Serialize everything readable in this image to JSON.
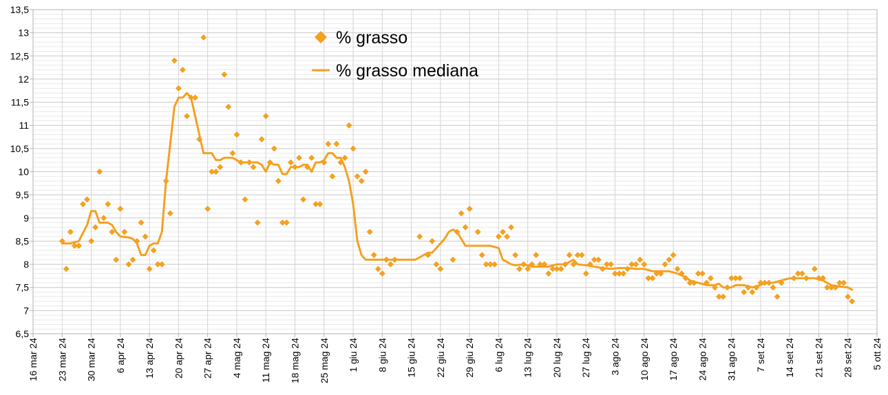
{
  "chart_data": {
    "type": "line",
    "title": "",
    "xlabel": "",
    "ylabel": "",
    "ylim": [
      6.5,
      13.5
    ],
    "yticks": [
      "6,5",
      "7",
      "7,5",
      "8",
      "8,5",
      "9",
      "9,5",
      "10",
      "10,5",
      "11",
      "11,5",
      "12",
      "12,5",
      "13",
      "13,5"
    ],
    "xticks": [
      "16 mar 24",
      "23 mar 24",
      "30 mar 24",
      "6 apr 24",
      "13 apr 24",
      "20 apr 24",
      "27 apr 24",
      "4 mag 24",
      "11 mag 24",
      "18 mag 24",
      "25 mag 24",
      "1 giu 24",
      "8 giu 24",
      "15 giu 24",
      "22 giu 24",
      "29 giu 24",
      "6 lug 24",
      "13 lug 24",
      "20 lug 24",
      "27 lug 24",
      "3 ago 24",
      "10 ago 24",
      "17 ago 24",
      "24 ago 24",
      "31 ago 24",
      "7 set 24",
      "14 set 24",
      "21 set 24",
      "28 set 24",
      "5 ott 24"
    ],
    "x_unit": "days since 16 mar 24",
    "grid": true,
    "legend_position": "top-center",
    "colors": {
      "series": "#f4a020",
      "grid": "#d9d9d9",
      "axis": "#b3b3b3"
    },
    "series": [
      {
        "name": "% grasso",
        "style": "markers",
        "marker": "diamond",
        "points": [
          [
            7,
            8.5
          ],
          [
            8,
            7.9
          ],
          [
            9,
            8.7
          ],
          [
            10,
            8.4
          ],
          [
            11,
            8.4
          ],
          [
            12,
            9.3
          ],
          [
            13,
            9.4
          ],
          [
            14,
            8.5
          ],
          [
            15,
            8.8
          ],
          [
            16,
            10.0
          ],
          [
            17,
            9.0
          ],
          [
            18,
            9.3
          ],
          [
            19,
            8.7
          ],
          [
            20,
            8.1
          ],
          [
            21,
            9.2
          ],
          [
            22,
            8.7
          ],
          [
            23,
            8.0
          ],
          [
            24,
            8.1
          ],
          [
            25,
            8.5
          ],
          [
            26,
            8.9
          ],
          [
            27,
            8.6
          ],
          [
            28,
            7.9
          ],
          [
            29,
            8.3
          ],
          [
            30,
            8.0
          ],
          [
            31,
            8.0
          ],
          [
            32,
            9.8
          ],
          [
            33,
            9.1
          ],
          [
            34,
            12.4
          ],
          [
            35,
            11.8
          ],
          [
            36,
            12.2
          ],
          [
            37,
            11.2
          ],
          [
            38,
            11.6
          ],
          [
            39,
            11.6
          ],
          [
            40,
            10.7
          ],
          [
            41,
            12.9
          ],
          [
            42,
            9.2
          ],
          [
            43,
            10.0
          ],
          [
            44,
            10.0
          ],
          [
            45,
            10.1
          ],
          [
            46,
            12.1
          ],
          [
            47,
            11.4
          ],
          [
            48,
            10.4
          ],
          [
            49,
            10.8
          ],
          [
            50,
            10.2
          ],
          [
            51,
            9.4
          ],
          [
            52,
            10.2
          ],
          [
            53,
            10.1
          ],
          [
            54,
            8.9
          ],
          [
            55,
            10.7
          ],
          [
            56,
            11.2
          ],
          [
            57,
            10.2
          ],
          [
            58,
            10.5
          ],
          [
            59,
            9.8
          ],
          [
            60,
            8.9
          ],
          [
            61,
            8.9
          ],
          [
            62,
            10.2
          ],
          [
            63,
            10.1
          ],
          [
            64,
            10.3
          ],
          [
            65,
            9.4
          ],
          [
            66,
            10.1
          ],
          [
            67,
            10.3
          ],
          [
            68,
            9.3
          ],
          [
            69,
            9.3
          ],
          [
            70,
            10.2
          ],
          [
            71,
            10.6
          ],
          [
            72,
            9.9
          ],
          [
            73,
            10.6
          ],
          [
            74,
            10.2
          ],
          [
            75,
            10.3
          ],
          [
            76,
            11.0
          ],
          [
            77,
            10.5
          ],
          [
            78,
            9.9
          ],
          [
            79,
            9.8
          ],
          [
            80,
            10.0
          ],
          [
            81,
            8.7
          ],
          [
            82,
            8.2
          ],
          [
            83,
            7.9
          ],
          [
            84,
            7.8
          ],
          [
            85,
            8.1
          ],
          [
            86,
            8.0
          ],
          [
            87,
            8.1
          ],
          [
            93,
            8.6
          ],
          [
            95,
            8.2
          ],
          [
            96,
            8.5
          ],
          [
            97,
            8.0
          ],
          [
            98,
            7.9
          ],
          [
            101,
            8.1
          ],
          [
            102,
            8.7
          ],
          [
            103,
            9.1
          ],
          [
            104,
            8.8
          ],
          [
            105,
            9.2
          ],
          [
            107,
            8.7
          ],
          [
            108,
            8.2
          ],
          [
            109,
            8.0
          ],
          [
            110,
            8.0
          ],
          [
            111,
            8.0
          ],
          [
            112,
            8.6
          ],
          [
            113,
            8.7
          ],
          [
            114,
            8.6
          ],
          [
            115,
            8.8
          ],
          [
            116,
            8.2
          ],
          [
            117,
            7.9
          ],
          [
            118,
            8.0
          ],
          [
            119,
            7.9
          ],
          [
            120,
            8.0
          ],
          [
            121,
            8.2
          ],
          [
            122,
            8.0
          ],
          [
            123,
            8.0
          ],
          [
            124,
            7.8
          ],
          [
            125,
            7.9
          ],
          [
            126,
            7.9
          ],
          [
            127,
            7.9
          ],
          [
            128,
            8.0
          ],
          [
            129,
            8.2
          ],
          [
            130,
            8.0
          ],
          [
            131,
            8.2
          ],
          [
            132,
            8.2
          ],
          [
            133,
            7.8
          ],
          [
            134,
            8.0
          ],
          [
            135,
            8.1
          ],
          [
            136,
            8.1
          ],
          [
            137,
            7.9
          ],
          [
            138,
            8.0
          ],
          [
            139,
            8.0
          ],
          [
            140,
            7.8
          ],
          [
            141,
            7.8
          ],
          [
            142,
            7.8
          ],
          [
            143,
            7.9
          ],
          [
            144,
            8.0
          ],
          [
            145,
            8.0
          ],
          [
            146,
            8.1
          ],
          [
            147,
            8.0
          ],
          [
            148,
            7.7
          ],
          [
            149,
            7.7
          ],
          [
            150,
            7.8
          ],
          [
            151,
            7.8
          ],
          [
            152,
            8.0
          ],
          [
            153,
            8.1
          ],
          [
            154,
            8.2
          ],
          [
            155,
            7.9
          ],
          [
            156,
            7.8
          ],
          [
            157,
            7.7
          ],
          [
            158,
            7.6
          ],
          [
            159,
            7.6
          ],
          [
            160,
            7.8
          ],
          [
            161,
            7.8
          ],
          [
            162,
            7.6
          ],
          [
            163,
            7.7
          ],
          [
            164,
            7.5
          ],
          [
            165,
            7.3
          ],
          [
            166,
            7.3
          ],
          [
            167,
            7.5
          ],
          [
            168,
            7.7
          ],
          [
            169,
            7.7
          ],
          [
            170,
            7.7
          ],
          [
            171,
            7.4
          ],
          [
            172,
            7.5
          ],
          [
            173,
            7.4
          ],
          [
            174,
            7.5
          ],
          [
            175,
            7.6
          ],
          [
            176,
            7.6
          ],
          [
            177,
            7.6
          ],
          [
            178,
            7.5
          ],
          [
            179,
            7.3
          ],
          [
            180,
            7.6
          ],
          [
            183,
            7.7
          ],
          [
            184,
            7.8
          ],
          [
            185,
            7.8
          ],
          [
            186,
            7.7
          ],
          [
            188,
            7.9
          ],
          [
            189,
            7.7
          ],
          [
            190,
            7.7
          ],
          [
            191,
            7.5
          ],
          [
            192,
            7.5
          ],
          [
            193,
            7.5
          ],
          [
            194,
            7.6
          ],
          [
            195,
            7.6
          ],
          [
            196,
            7.3
          ],
          [
            197,
            7.2
          ]
        ]
      },
      {
        "name": "% grasso mediana",
        "style": "line",
        "points": [
          [
            7,
            8.45
          ],
          [
            9,
            8.45
          ],
          [
            11,
            8.5
          ],
          [
            13,
            8.85
          ],
          [
            14,
            9.15
          ],
          [
            15,
            9.15
          ],
          [
            16,
            8.9
          ],
          [
            18,
            8.9
          ],
          [
            19,
            8.85
          ],
          [
            20,
            8.7
          ],
          [
            21,
            8.6
          ],
          [
            23,
            8.58
          ],
          [
            24,
            8.55
          ],
          [
            25,
            8.45
          ],
          [
            26,
            8.2
          ],
          [
            27,
            8.2
          ],
          [
            28,
            8.4
          ],
          [
            29,
            8.45
          ],
          [
            30,
            8.45
          ],
          [
            31,
            8.7
          ],
          [
            32,
            9.8
          ],
          [
            33,
            10.6
          ],
          [
            34,
            11.4
          ],
          [
            35,
            11.6
          ],
          [
            36,
            11.6
          ],
          [
            37,
            11.7
          ],
          [
            38,
            11.6
          ],
          [
            39,
            11.2
          ],
          [
            40,
            10.8
          ],
          [
            41,
            10.4
          ],
          [
            43,
            10.4
          ],
          [
            44,
            10.25
          ],
          [
            45,
            10.25
          ],
          [
            46,
            10.3
          ],
          [
            48,
            10.3
          ],
          [
            49,
            10.25
          ],
          [
            50,
            10.2
          ],
          [
            52,
            10.2
          ],
          [
            54,
            10.2
          ],
          [
            55,
            10.15
          ],
          [
            56,
            10.0
          ],
          [
            57,
            10.2
          ],
          [
            58,
            10.15
          ],
          [
            59,
            10.15
          ],
          [
            60,
            9.95
          ],
          [
            61,
            9.95
          ],
          [
            62,
            10.1
          ],
          [
            64,
            10.1
          ],
          [
            65,
            10.15
          ],
          [
            66,
            10.15
          ],
          [
            67,
            10.0
          ],
          [
            68,
            10.2
          ],
          [
            69,
            10.2
          ],
          [
            70,
            10.25
          ],
          [
            71,
            10.4
          ],
          [
            72,
            10.4
          ],
          [
            73,
            10.3
          ],
          [
            74,
            10.3
          ],
          [
            75,
            10.1
          ],
          [
            76,
            9.8
          ],
          [
            77,
            9.3
          ],
          [
            78,
            8.5
          ],
          [
            79,
            8.2
          ],
          [
            80,
            8.1
          ],
          [
            82,
            8.1
          ],
          [
            84,
            8.1
          ],
          [
            88,
            8.1
          ],
          [
            92,
            8.1
          ],
          [
            94,
            8.2
          ],
          [
            95,
            8.25
          ],
          [
            96,
            8.25
          ],
          [
            97,
            8.35
          ],
          [
            98,
            8.45
          ],
          [
            99,
            8.55
          ],
          [
            100,
            8.7
          ],
          [
            101,
            8.75
          ],
          [
            102,
            8.7
          ],
          [
            103,
            8.55
          ],
          [
            104,
            8.4
          ],
          [
            106,
            8.4
          ],
          [
            108,
            8.4
          ],
          [
            110,
            8.4
          ],
          [
            112,
            8.35
          ],
          [
            113,
            8.1
          ],
          [
            114,
            8.05
          ],
          [
            115,
            8.0
          ],
          [
            116,
            7.98
          ],
          [
            118,
            8.0
          ],
          [
            120,
            7.95
          ],
          [
            122,
            7.95
          ],
          [
            124,
            7.95
          ],
          [
            126,
            8.0
          ],
          [
            128,
            8.0
          ],
          [
            129,
            8.05
          ],
          [
            130,
            8.1
          ],
          [
            131,
            8.0
          ],
          [
            133,
            7.98
          ],
          [
            135,
            7.95
          ],
          [
            137,
            7.92
          ],
          [
            139,
            7.9
          ],
          [
            141,
            7.92
          ],
          [
            143,
            7.92
          ],
          [
            145,
            7.9
          ],
          [
            147,
            7.9
          ],
          [
            149,
            7.85
          ],
          [
            151,
            7.85
          ],
          [
            153,
            7.85
          ],
          [
            155,
            7.8
          ],
          [
            157,
            7.72
          ],
          [
            158,
            7.65
          ],
          [
            160,
            7.6
          ],
          [
            162,
            7.55
          ],
          [
            164,
            7.55
          ],
          [
            165,
            7.58
          ],
          [
            166,
            7.5
          ],
          [
            168,
            7.5
          ],
          [
            169,
            7.55
          ],
          [
            171,
            7.55
          ],
          [
            173,
            7.5
          ],
          [
            175,
            7.55
          ],
          [
            176,
            7.6
          ],
          [
            178,
            7.6
          ],
          [
            180,
            7.65
          ],
          [
            182,
            7.7
          ],
          [
            184,
            7.7
          ],
          [
            186,
            7.7
          ],
          [
            188,
            7.7
          ],
          [
            190,
            7.65
          ],
          [
            192,
            7.55
          ],
          [
            194,
            7.52
          ],
          [
            196,
            7.5
          ],
          [
            197,
            7.45
          ]
        ]
      }
    ]
  }
}
